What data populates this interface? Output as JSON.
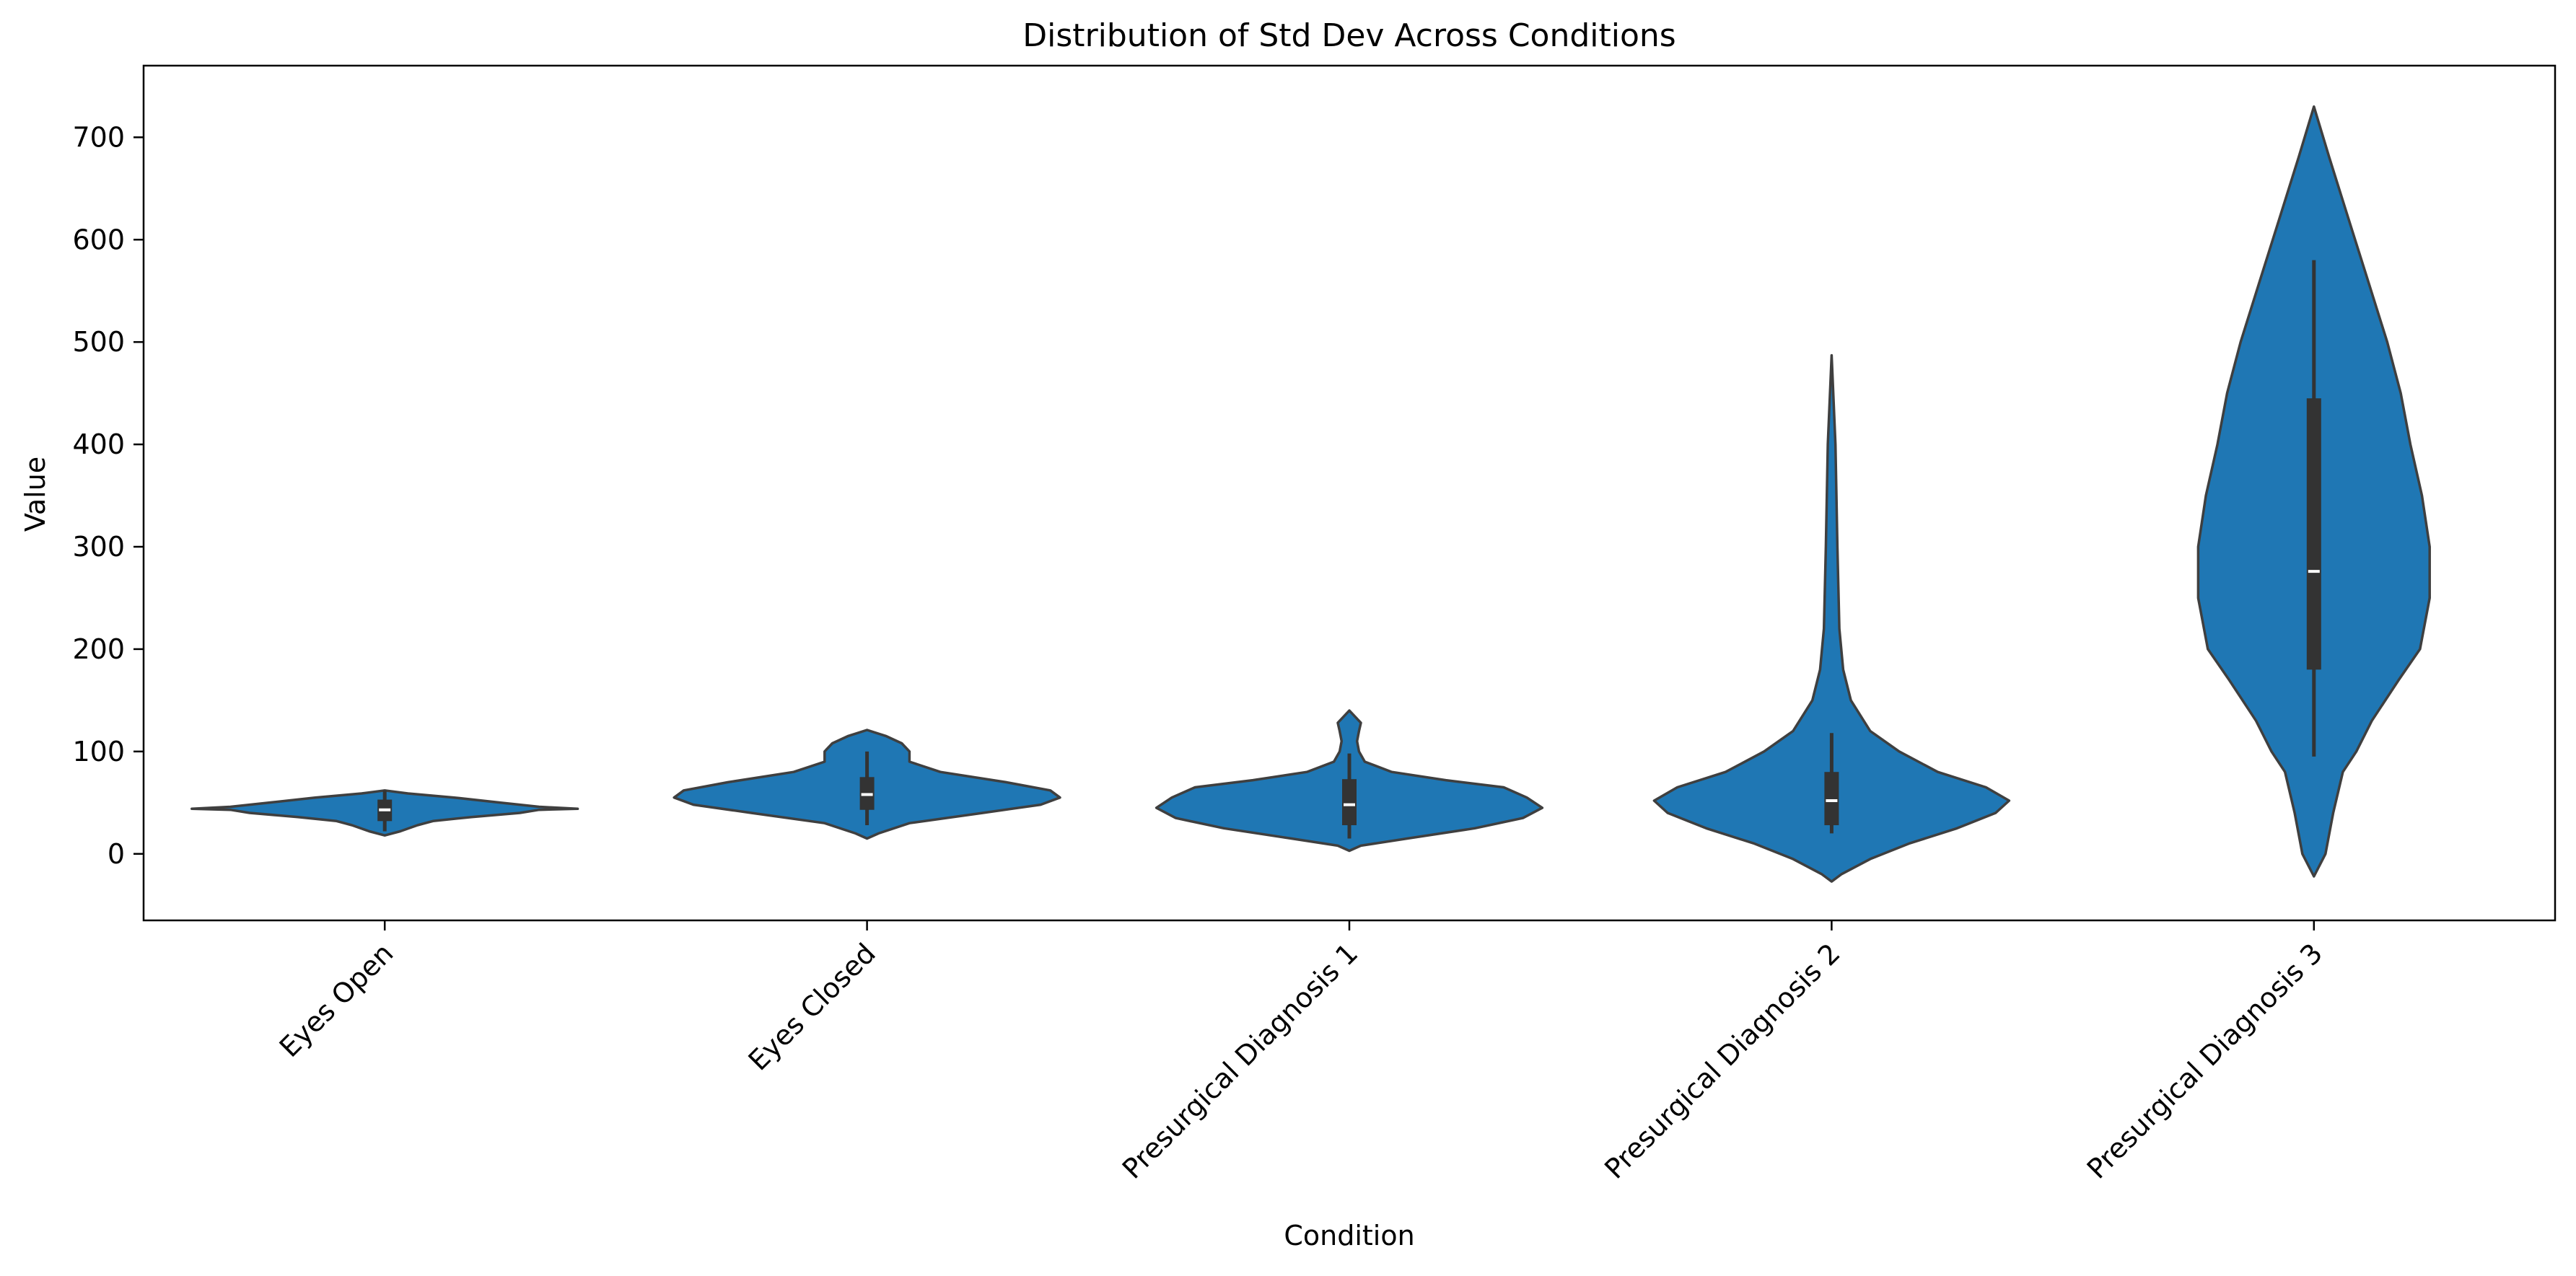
{
  "chart_data": {
    "type": "violin",
    "title": "Distribution of Std Dev Across Conditions",
    "xlabel": "Condition",
    "ylabel": "Value",
    "categories": [
      "Eyes Open",
      "Eyes Closed",
      "Presurgical Diagnosis 1",
      "Presurgical Diagnosis 2",
      "Presurgical Diagnosis 3"
    ],
    "ylim": [
      -65,
      770
    ],
    "yticks": [
      0,
      100,
      200,
      300,
      400,
      500,
      600,
      700
    ],
    "grid": false,
    "legend": "none",
    "colors": {
      "violin_fill": "#1f77b4",
      "violin_edge": "#3f3f3f",
      "box": "#333333",
      "median": "#ffffff",
      "axis": "#000000"
    },
    "violins": [
      {
        "name": "Eyes Open",
        "profile": [
          [
            18,
            0.0
          ],
          [
            22,
            0.08
          ],
          [
            28,
            0.17
          ],
          [
            32,
            0.25
          ],
          [
            36,
            0.45
          ],
          [
            40,
            0.7
          ],
          [
            43,
            0.8
          ],
          [
            44,
            1.0
          ],
          [
            46,
            0.8
          ],
          [
            50,
            0.6
          ],
          [
            55,
            0.36
          ],
          [
            59,
            0.12
          ],
          [
            62,
            0.0
          ]
        ],
        "q1": 32,
        "median": 43,
        "q3": 53,
        "whisker_low": 22,
        "whisker_high": 62
      },
      {
        "name": "Eyes Closed",
        "profile": [
          [
            15,
            0.0
          ],
          [
            20,
            0.06
          ],
          [
            30,
            0.22
          ],
          [
            40,
            0.6
          ],
          [
            48,
            0.9
          ],
          [
            55,
            1.0
          ],
          [
            62,
            0.95
          ],
          [
            70,
            0.72
          ],
          [
            80,
            0.38
          ],
          [
            90,
            0.22
          ],
          [
            100,
            0.22
          ],
          [
            108,
            0.18
          ],
          [
            115,
            0.1
          ],
          [
            121,
            0.0
          ]
        ],
        "q1": 43,
        "median": 58,
        "q3": 75,
        "whisker_low": 28,
        "whisker_high": 100
      },
      {
        "name": "Presurgical Diagnosis 1",
        "profile": [
          [
            3,
            0.0
          ],
          [
            8,
            0.06
          ],
          [
            15,
            0.3
          ],
          [
            25,
            0.65
          ],
          [
            35,
            0.9
          ],
          [
            45,
            1.0
          ],
          [
            55,
            0.92
          ],
          [
            65,
            0.8
          ],
          [
            72,
            0.5
          ],
          [
            80,
            0.22
          ],
          [
            90,
            0.08
          ],
          [
            100,
            0.05
          ],
          [
            110,
            0.04
          ],
          [
            120,
            0.05
          ],
          [
            128,
            0.06
          ],
          [
            134,
            0.03
          ],
          [
            140,
            0.0
          ]
        ],
        "q1": 28,
        "median": 48,
        "q3": 73,
        "whisker_low": 15,
        "whisker_high": 98
      },
      {
        "name": "Presurgical Diagnosis 2",
        "profile": [
          [
            -27,
            0.0
          ],
          [
            -20,
            0.05
          ],
          [
            -5,
            0.2
          ],
          [
            10,
            0.4
          ],
          [
            25,
            0.65
          ],
          [
            40,
            0.85
          ],
          [
            52,
            0.92
          ],
          [
            65,
            0.8
          ],
          [
            80,
            0.55
          ],
          [
            100,
            0.35
          ],
          [
            120,
            0.2
          ],
          [
            150,
            0.1
          ],
          [
            180,
            0.06
          ],
          [
            220,
            0.04
          ],
          [
            300,
            0.03
          ],
          [
            400,
            0.02
          ],
          [
            487,
            0.0
          ]
        ],
        "q1": 28,
        "median": 52,
        "q3": 80,
        "whisker_low": 20,
        "whisker_high": 118
      },
      {
        "name": "Presurgical Diagnosis 3",
        "profile": [
          [
            -22,
            0.0
          ],
          [
            0,
            0.06
          ],
          [
            40,
            0.1
          ],
          [
            80,
            0.15
          ],
          [
            100,
            0.22
          ],
          [
            130,
            0.3
          ],
          [
            170,
            0.44
          ],
          [
            200,
            0.55
          ],
          [
            250,
            0.6
          ],
          [
            300,
            0.6
          ],
          [
            350,
            0.56
          ],
          [
            400,
            0.5
          ],
          [
            450,
            0.45
          ],
          [
            500,
            0.38
          ],
          [
            560,
            0.28
          ],
          [
            620,
            0.18
          ],
          [
            680,
            0.08
          ],
          [
            730,
            0.0
          ]
        ],
        "q1": 180,
        "median": 276,
        "q3": 445,
        "whisker_low": 95,
        "whisker_high": 580
      }
    ]
  }
}
